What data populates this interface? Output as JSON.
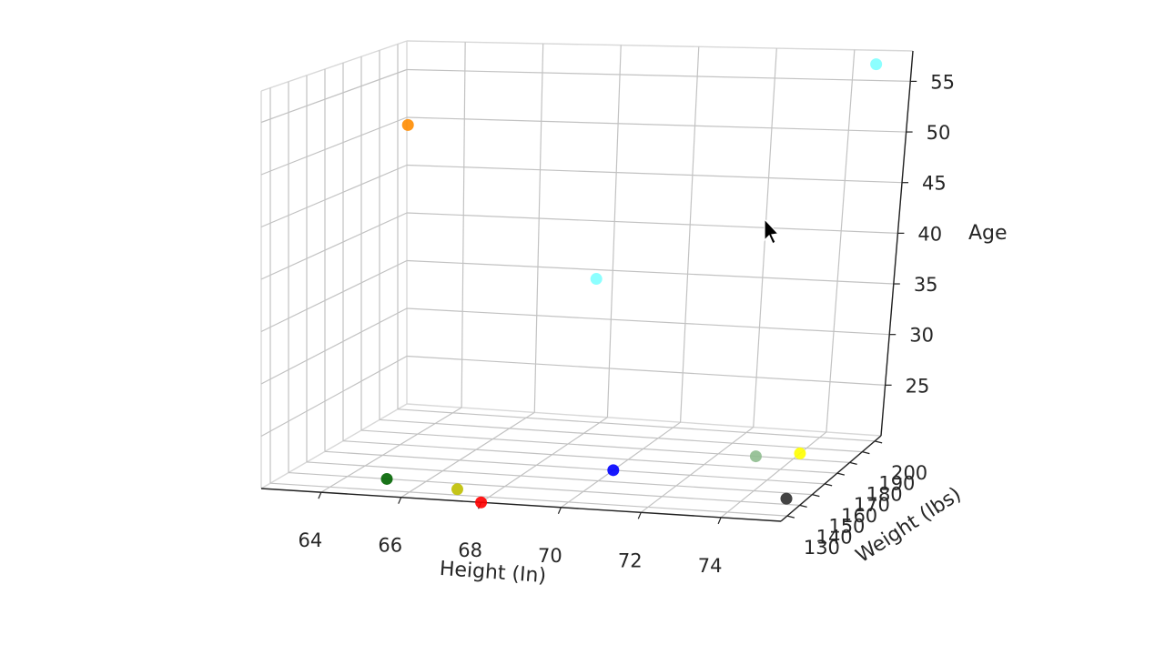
{
  "chart_data": {
    "type": "scatter",
    "projection": "3d",
    "title": "",
    "xlabel": "Height (In)",
    "ylabel": "Weight (lbs)",
    "zlabel": "Age",
    "xlim": [
      62.5,
      75.5
    ],
    "ylim": [
      125,
      205
    ],
    "zlim": [
      20,
      58
    ],
    "x_ticks": [
      "64",
      "66",
      "68",
      "70",
      "72",
      "74"
    ],
    "y_ticks": [
      "130",
      "140",
      "150",
      "160",
      "170",
      "180",
      "190",
      "200"
    ],
    "z_ticks": [
      "25",
      "30",
      "35",
      "40",
      "45",
      "50",
      "55"
    ],
    "grid": true,
    "points": [
      {
        "x": 63,
        "y": 195,
        "z": 50,
        "color": "#ff8c00"
      },
      {
        "x": 68,
        "y": 195,
        "z": 35,
        "color": "#7fffff"
      },
      {
        "x": 75,
        "y": 195,
        "z": 57,
        "color": "#7fffff"
      },
      {
        "x": 65,
        "y": 140,
        "z": 20,
        "color": "#006400"
      },
      {
        "x": 67,
        "y": 135,
        "z": 20,
        "color": "#bfbf00"
      },
      {
        "x": 68,
        "y": 125,
        "z": 20,
        "color": "#ff0000"
      },
      {
        "x": 70,
        "y": 160,
        "z": 20,
        "color": "#0000ff"
      },
      {
        "x": 73,
        "y": 180,
        "z": 20,
        "color": "#8fbc8f"
      },
      {
        "x": 74,
        "y": 185,
        "z": 20,
        "color": "#ffff00"
      },
      {
        "x": 75,
        "y": 145,
        "z": 20,
        "color": "#2f2f2f"
      }
    ]
  }
}
